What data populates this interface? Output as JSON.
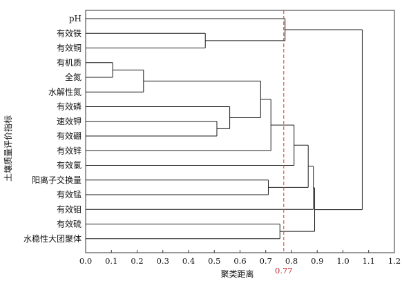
{
  "chart_data": {
    "type": "dendrogram",
    "xlabel": "聚类距离",
    "ylabel": "土壤质量评价指标",
    "xlim": [
      0.0,
      1.2
    ],
    "x_ticks": [
      "0.0",
      "0.1",
      "0.2",
      "0.3",
      "0.4",
      "0.5",
      "0.6",
      "0.7",
      "0.8",
      "0.9",
      "1.0",
      "1.1",
      "1.2"
    ],
    "leaves": [
      "pH",
      "有效铁",
      "有效铜",
      "有机质",
      "全氮",
      "水解性氮",
      "有效磷",
      "速效钾",
      "有效硼",
      "有效锌",
      "有效氯",
      "阳离子交换量",
      "有效锰",
      "有效钼",
      "有效硫",
      "水稳性大团聚体"
    ],
    "merges": [
      {
        "a": "L3",
        "b": "L4",
        "height": 0.105
      },
      {
        "a": "M0",
        "b": "L5",
        "height": 0.225
      },
      {
        "a": "L1",
        "b": "L2",
        "height": 0.465
      },
      {
        "a": "L7",
        "b": "L8",
        "height": 0.51
      },
      {
        "a": "L6",
        "b": "M3",
        "height": 0.56
      },
      {
        "a": "M1",
        "b": "M4",
        "height": 0.68
      },
      {
        "a": "L11",
        "b": "L12",
        "height": 0.71
      },
      {
        "a": "M5",
        "b": "L9",
        "height": 0.72
      },
      {
        "a": "L14",
        "b": "L15",
        "height": 0.755
      },
      {
        "a": "L0",
        "b": "M2",
        "height": 0.775
      },
      {
        "a": "M7",
        "b": "L10",
        "height": 0.81
      },
      {
        "a": "M10",
        "b": "M6",
        "height": 0.865
      },
      {
        "a": "M11",
        "b": "L13",
        "height": 0.885
      },
      {
        "a": "M12",
        "b": "M8",
        "height": 0.89
      },
      {
        "a": "M9",
        "b": "M13",
        "height": 1.075
      }
    ],
    "threshold": {
      "value": 0.77,
      "label": "0.77",
      "color": "#d9342b",
      "style": "dashed"
    },
    "line_color": "#1a1a1a",
    "grid": false,
    "legend": "none"
  }
}
